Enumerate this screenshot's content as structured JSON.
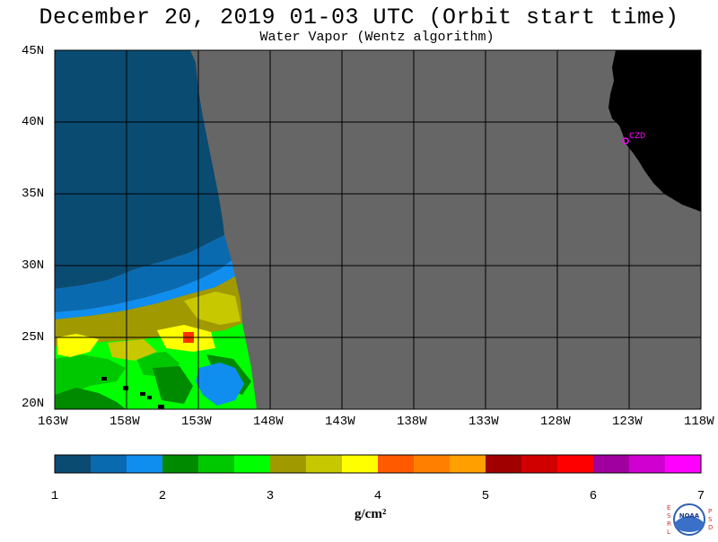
{
  "header": {
    "title": "December 20, 2019  01-03 UTC  (Orbit start time)",
    "subtitle": "Water Vapor (Wentz algorithm)"
  },
  "map": {
    "lat_labels": [
      "45N",
      "40N",
      "35N",
      "30N",
      "25N",
      "20N"
    ],
    "lon_labels": [
      "163W",
      "158W",
      "153W",
      "148W",
      "143W",
      "138W",
      "133W",
      "128W",
      "123W",
      "118W"
    ],
    "station_label": "CZD",
    "colors": {
      "no_data": "#666666",
      "land": "#000000",
      "grid": "#000000",
      "station": "#ff00ff"
    }
  },
  "colorbar": {
    "ticks": [
      "1",
      "2",
      "3",
      "4",
      "5",
      "6",
      "7"
    ],
    "unit": "g/cm²",
    "colors": [
      "#0a4b72",
      "#0a6ab0",
      "#0f8ef0",
      "#008a00",
      "#00c800",
      "#00ff00",
      "#a09a00",
      "#c8c800",
      "#ffff00",
      "#ff5a00",
      "#ff8000",
      "#ffa000",
      "#a00000",
      "#d00000",
      "#ff0000",
      "#a000a0",
      "#d000d0",
      "#ff00ff"
    ]
  },
  "logo": {
    "left_letters": "ESRL",
    "right_letters": "PSD",
    "center_text": "NOAA"
  }
}
